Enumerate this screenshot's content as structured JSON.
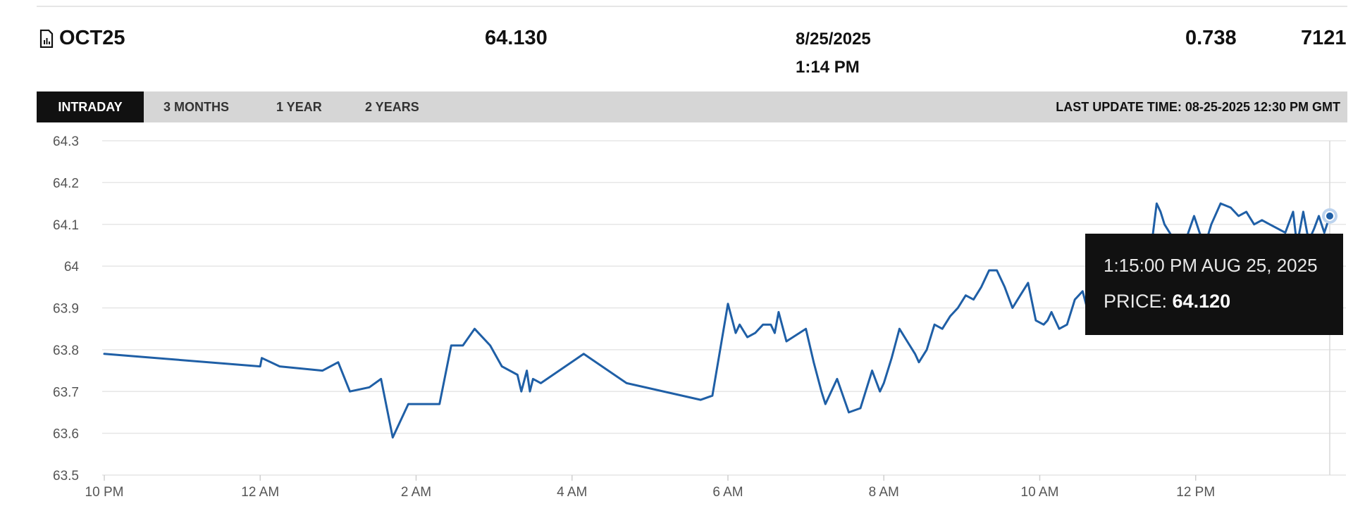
{
  "quote": {
    "symbol": "OCT25",
    "price": "64.130",
    "date": "8/25/2025",
    "time": "1:14 PM",
    "change": "0.738",
    "volume": "7121",
    "symbol_icon": "document-chart-icon"
  },
  "tabs": [
    "INTRADAY",
    "3 MONTHS",
    "1 YEAR",
    "2 YEARS"
  ],
  "active_tab": 0,
  "last_update": "LAST UPDATE TIME: 08-25-2025 12:30 PM GMT",
  "tooltip": {
    "time": "1:15:00 PM AUG 25, 2025",
    "price_label": "PRICE: ",
    "price_value": "64.120"
  },
  "colors": {
    "line": "#1f5fa6",
    "grid": "#e6e6e6",
    "tab_bar": "#d6d6d6",
    "tab_active": "#111111",
    "tooltip_bg": "#111111"
  },
  "chart_data": {
    "type": "line",
    "title": "",
    "xlabel": "",
    "ylabel": "",
    "ylim": [
      63.5,
      64.3
    ],
    "y_ticks": [
      "64.3",
      "64.2",
      "64.1",
      "64",
      "63.9",
      "63.8",
      "63.7",
      "63.6",
      "63.5"
    ],
    "x_tick_labels": [
      "10 PM",
      "12 AM",
      "2 AM",
      "4 AM",
      "6 AM",
      "8 AM",
      "10 AM",
      "12 PM"
    ],
    "x_tick_hours": [
      0,
      2,
      4,
      6,
      8,
      10,
      12,
      14
    ],
    "x_unit": "hours since 10 PM",
    "grid": true,
    "series": [
      {
        "points": [
          [
            0.0,
            63.79
          ],
          [
            2.0,
            63.76
          ],
          [
            2.02,
            63.78
          ],
          [
            2.25,
            63.76
          ],
          [
            2.8,
            63.75
          ],
          [
            3.0,
            63.77
          ],
          [
            3.15,
            63.7
          ],
          [
            3.4,
            63.71
          ],
          [
            3.55,
            63.73
          ],
          [
            3.7,
            63.59
          ],
          [
            3.9,
            63.67
          ],
          [
            4.3,
            63.67
          ],
          [
            4.45,
            63.81
          ],
          [
            4.6,
            63.81
          ],
          [
            4.75,
            63.85
          ],
          [
            4.95,
            63.81
          ],
          [
            5.1,
            63.76
          ],
          [
            5.3,
            63.74
          ],
          [
            5.35,
            63.7
          ],
          [
            5.42,
            63.75
          ],
          [
            5.46,
            63.7
          ],
          [
            5.5,
            63.73
          ],
          [
            5.6,
            63.72
          ],
          [
            6.15,
            63.79
          ],
          [
            6.7,
            63.72
          ],
          [
            7.65,
            63.68
          ],
          [
            7.8,
            63.69
          ],
          [
            8.0,
            63.91
          ],
          [
            8.1,
            63.84
          ],
          [
            8.15,
            63.86
          ],
          [
            8.25,
            63.83
          ],
          [
            8.35,
            63.84
          ],
          [
            8.45,
            63.86
          ],
          [
            8.55,
            63.86
          ],
          [
            8.6,
            63.84
          ],
          [
            8.65,
            63.89
          ],
          [
            8.75,
            63.82
          ],
          [
            9.0,
            63.85
          ],
          [
            9.1,
            63.77
          ],
          [
            9.2,
            63.7
          ],
          [
            9.25,
            63.67
          ],
          [
            9.4,
            63.73
          ],
          [
            9.55,
            63.65
          ],
          [
            9.7,
            63.66
          ],
          [
            9.85,
            63.75
          ],
          [
            9.95,
            63.7
          ],
          [
            10.0,
            63.72
          ],
          [
            10.1,
            63.78
          ],
          [
            10.2,
            63.85
          ],
          [
            10.3,
            63.82
          ],
          [
            10.4,
            63.79
          ],
          [
            10.45,
            63.77
          ],
          [
            10.55,
            63.8
          ],
          [
            10.65,
            63.86
          ],
          [
            10.75,
            63.85
          ],
          [
            10.85,
            63.88
          ],
          [
            10.95,
            63.9
          ],
          [
            11.05,
            63.93
          ],
          [
            11.15,
            63.92
          ],
          [
            11.25,
            63.95
          ],
          [
            11.35,
            63.99
          ],
          [
            11.45,
            63.99
          ],
          [
            11.55,
            63.95
          ],
          [
            11.65,
            63.9
          ],
          [
            11.75,
            63.93
          ],
          [
            11.85,
            63.96
          ],
          [
            11.95,
            63.87
          ],
          [
            12.05,
            63.86
          ],
          [
            12.1,
            63.87
          ],
          [
            12.15,
            63.89
          ],
          [
            12.25,
            63.85
          ],
          [
            12.35,
            63.86
          ],
          [
            12.45,
            63.92
          ],
          [
            12.55,
            63.94
          ],
          [
            12.62,
            63.89
          ],
          [
            12.72,
            63.92
          ],
          [
            12.8,
            63.93
          ],
          [
            12.9,
            63.96
          ],
          [
            12.95,
            63.92
          ],
          [
            13.05,
            63.95
          ],
          [
            13.12,
            63.87
          ],
          [
            13.18,
            63.85
          ],
          [
            13.28,
            63.93
          ],
          [
            13.35,
            63.95
          ],
          [
            13.4,
            64.0
          ],
          [
            13.5,
            64.15
          ],
          [
            13.55,
            64.13
          ],
          [
            13.6,
            64.1
          ],
          [
            13.7,
            64.07
          ],
          [
            13.85,
            64.05
          ],
          [
            13.98,
            64.12
          ],
          [
            14.05,
            64.08
          ],
          [
            14.12,
            64.05
          ],
          [
            14.2,
            64.1
          ],
          [
            14.32,
            64.15
          ],
          [
            14.45,
            64.14
          ],
          [
            14.55,
            64.12
          ],
          [
            14.65,
            64.13
          ],
          [
            14.75,
            64.1
          ],
          [
            14.85,
            64.11
          ],
          [
            14.95,
            64.1
          ],
          [
            15.05,
            64.09
          ],
          [
            15.15,
            64.08
          ],
          [
            15.25,
            64.13
          ],
          [
            15.3,
            64.05
          ],
          [
            15.38,
            64.13
          ],
          [
            15.45,
            64.06
          ],
          [
            15.52,
            64.09
          ],
          [
            15.58,
            64.12
          ],
          [
            15.65,
            64.08
          ],
          [
            15.72,
            64.12
          ]
        ]
      }
    ],
    "highlight_point": [
      15.72,
      64.12
    ]
  }
}
